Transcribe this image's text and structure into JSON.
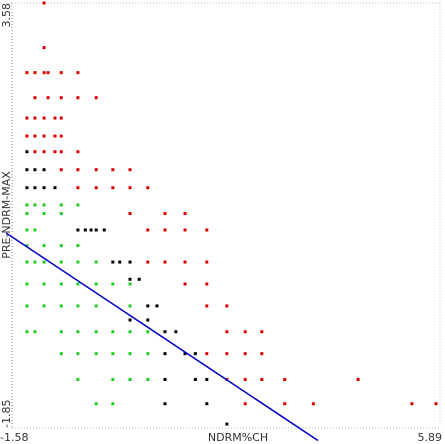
{
  "chart_data": {
    "type": "scatter",
    "x_label": "NDRM%CH",
    "y_label": "PRE-NDRM-MAX",
    "xlim": [
      -1.58,
      5.89
    ],
    "ylim": [
      -1.85,
      3.58
    ],
    "xticks": [
      -1.58,
      5.89
    ],
    "yticks": [
      -1.85,
      3.58
    ],
    "grid": true,
    "series": [
      {
        "color": "#e00000",
        "x": [
          -1.02,
          -1.02,
          -1.32,
          -1.18,
          -1.02,
          -0.95,
          -0.72,
          -0.43,
          -1.18,
          -0.95,
          -0.72,
          -0.43,
          -0.11,
          -1.32,
          -1.18,
          -1.02,
          -0.83,
          -0.72,
          -1.32,
          -1.18,
          -1.02,
          -0.83,
          -0.72,
          -1.18,
          -1.02,
          -0.83,
          -0.72,
          -0.43,
          -0.72,
          -0.43,
          -0.11,
          0.18,
          0.48,
          -0.43,
          -0.11,
          0.18,
          0.48,
          0.79,
          0.48,
          1.09,
          1.44,
          0.79,
          1.09,
          1.44,
          1.82,
          0.79,
          1.09,
          1.44,
          1.82,
          1.44,
          1.82,
          1.82,
          2.17,
          2.17,
          2.49,
          2.78,
          1.82,
          2.17,
          2.49,
          2.78,
          2.17,
          2.49,
          2.78,
          3.18,
          4.46,
          2.49,
          3.18,
          3.68,
          5.4,
          5.82
        ],
        "y": [
          3.58,
          3.01,
          2.69,
          2.69,
          2.69,
          2.69,
          2.69,
          2.69,
          2.37,
          2.37,
          2.37,
          2.37,
          2.37,
          2.11,
          2.11,
          2.11,
          2.11,
          2.11,
          1.88,
          1.88,
          1.88,
          1.88,
          1.88,
          1.68,
          1.68,
          1.68,
          1.68,
          1.68,
          1.45,
          1.45,
          1.45,
          1.45,
          1.45,
          1.22,
          1.22,
          1.22,
          1.22,
          1.22,
          0.89,
          0.89,
          0.89,
          0.68,
          0.68,
          0.68,
          0.68,
          0.27,
          0.27,
          0.27,
          0.27,
          -0.01,
          -0.01,
          -0.29,
          -0.29,
          -0.62,
          -0.62,
          -0.62,
          -0.9,
          -0.9,
          -0.9,
          -0.9,
          -1.23,
          -1.23,
          -1.23,
          -1.23,
          -1.23,
          -1.54,
          -1.54,
          -1.54,
          -1.54,
          -1.54
        ]
      },
      {
        "color": "#000000",
        "x": [
          -1.32,
          -1.18,
          -1.02,
          -1.32,
          -1.32,
          -1.18,
          -1.02,
          -0.83,
          -0.43,
          -0.3,
          -0.2,
          -0.11,
          0.03,
          0.18,
          0.3,
          0.48,
          0.48,
          0.64,
          0.79,
          0.95,
          0.48,
          0.79,
          1.09,
          1.28,
          1.09,
          1.44,
          1.62,
          1.09,
          1.62,
          1.82,
          1.09,
          1.82,
          2.17
        ],
        "y": [
          1.45,
          1.45,
          1.45,
          1.68,
          1.22,
          1.22,
          1.22,
          1.22,
          0.68,
          0.68,
          0.68,
          0.68,
          0.68,
          0.27,
          0.27,
          0.27,
          0.05,
          0.05,
          -0.29,
          -0.29,
          -0.47,
          -0.47,
          -0.62,
          -0.62,
          -0.9,
          -0.9,
          -0.9,
          -1.23,
          -1.23,
          -1.23,
          -1.54,
          -1.54,
          -1.8
        ]
      },
      {
        "color": "#22cc22",
        "x": [
          -1.32,
          -1.18,
          -1.02,
          -0.72,
          -0.43,
          -1.32,
          -1.02,
          -0.72,
          -1.32,
          -1.18,
          -1.32,
          -1.02,
          -0.72,
          -0.43,
          -1.32,
          -1.18,
          -1.02,
          -0.72,
          -0.43,
          -0.11,
          -1.32,
          -1.02,
          -0.72,
          -0.43,
          -0.11,
          0.18,
          0.48,
          -1.32,
          -1.02,
          -0.72,
          -0.43,
          -0.11,
          0.48,
          -1.32,
          -1.18,
          -0.72,
          -0.43,
          -0.11,
          0.18,
          0.48,
          0.79,
          -0.72,
          -0.43,
          -0.11,
          0.18,
          0.48,
          0.79,
          -0.43,
          0.18,
          0.48,
          0.79,
          -0.11,
          0.18
        ],
        "y": [
          1.0,
          1.0,
          1.0,
          1.0,
          1.0,
          0.89,
          0.89,
          0.89,
          0.68,
          0.68,
          0.48,
          0.48,
          0.48,
          0.48,
          0.27,
          0.27,
          0.27,
          0.27,
          0.27,
          0.27,
          -0.01,
          -0.01,
          -0.01,
          -0.01,
          -0.01,
          -0.01,
          -0.01,
          -0.29,
          -0.29,
          -0.29,
          -0.29,
          -0.29,
          -0.29,
          -0.62,
          -0.62,
          -0.62,
          -0.62,
          -0.62,
          -0.62,
          -0.62,
          -0.62,
          -0.9,
          -0.9,
          -0.9,
          -0.9,
          -0.9,
          -0.9,
          -1.23,
          -1.23,
          -1.23,
          -1.23,
          -1.54,
          -1.54
        ]
      }
    ],
    "lines": [
      {
        "color": "#0000cc",
        "x": [
          -1.68,
          3.76
        ],
        "y": [
          0.64,
          -2.01
        ]
      }
    ]
  }
}
